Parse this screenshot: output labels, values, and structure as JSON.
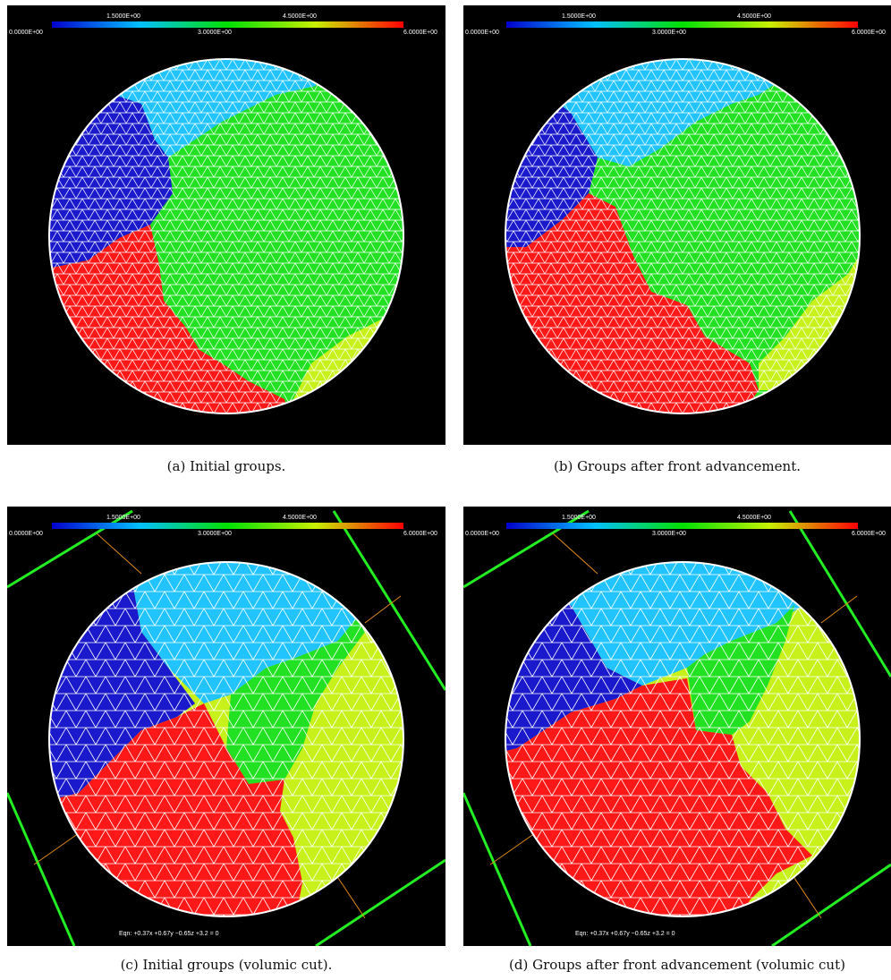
{
  "colorbar": {
    "top_labels": [
      "1.5000E+00",
      "4.5000E+00"
    ],
    "bottom_labels": [
      "0.0000E+00",
      "3.0000E+00",
      "6.0000E+00"
    ],
    "range": [
      0,
      6
    ],
    "colors": [
      "#0000cc",
      "#00c0ff",
      "#00e000",
      "#c8f000",
      "#ff0000"
    ]
  },
  "group_colors": {
    "blue": "#1a1acc",
    "cyan": "#22c4ff",
    "green": "#22e022",
    "yellow": "#c8f01a",
    "red": "#ff1818"
  },
  "panels": [
    {
      "id": "a",
      "caption": "(a) Initial groups.",
      "eqn": ""
    },
    {
      "id": "b",
      "caption": "(b) Groups after front advancement.",
      "eqn": ""
    },
    {
      "id": "c",
      "caption": "(c) Initial groups (volumic cut).",
      "eqn": "Eqn: +0.37x +0.67y −0.65z +3.2 = 0"
    },
    {
      "id": "d",
      "caption": "(d) Groups after front advancement (volumic cut)",
      "eqn": "Eqn: +0.37x +0.67y −0.65z +3.2 = 0"
    }
  ]
}
